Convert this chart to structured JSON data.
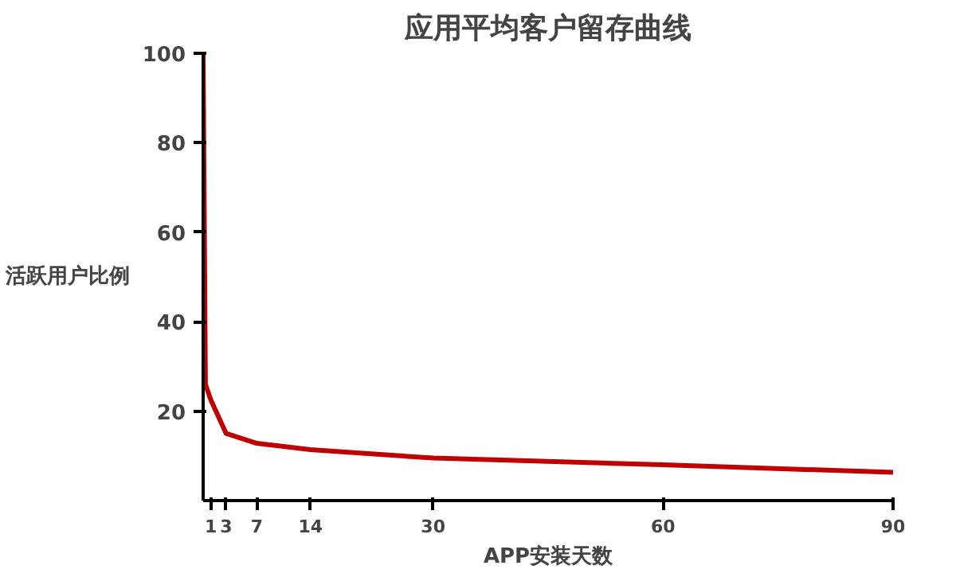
{
  "chart_data": {
    "type": "line",
    "title": "应用平均客户留存曲线",
    "xlabel": "APP安装天数",
    "ylabel": "活跃用户比例",
    "x": [
      0,
      0.3,
      1,
      3,
      7,
      14,
      30,
      60,
      90
    ],
    "series": [
      {
        "color": "#c00000",
        "values": [
          100,
          26,
          22.5,
          15,
          12.8,
          11.4,
          9.5,
          8,
          6.3
        ]
      }
    ],
    "xlim": [
      0,
      90
    ],
    "xticks": [
      1,
      3,
      7,
      14,
      30,
      60,
      90
    ],
    "ylim": [
      0,
      100
    ],
    "yticks": [
      20,
      40,
      60,
      80,
      100
    ],
    "grid": false,
    "marker": "none",
    "line_style": "solid"
  }
}
